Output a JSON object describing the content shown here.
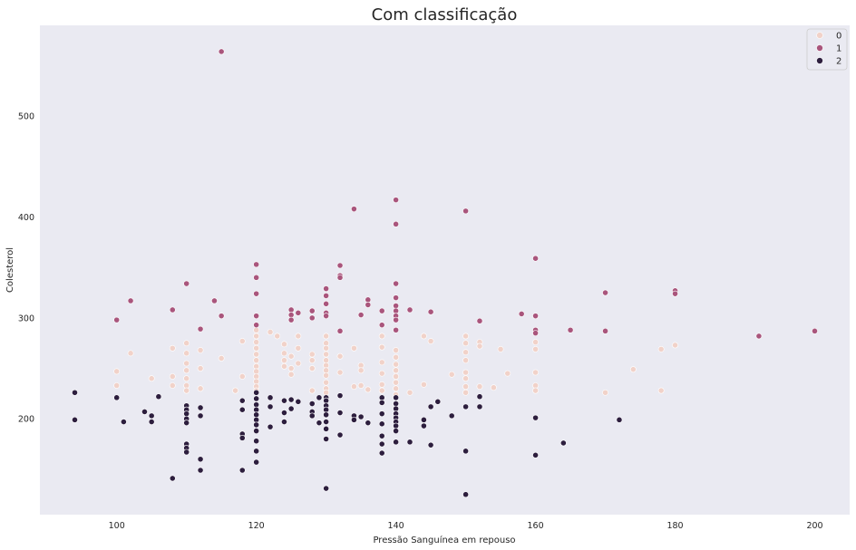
{
  "chart_data": {
    "type": "scatter",
    "title": "Com classificação",
    "xlabel": "Pressão Sanguínea em repouso",
    "ylabel": "Colesterol",
    "xlim": [
      89,
      205
    ],
    "ylim": [
      105,
      590
    ],
    "xticks": [
      100,
      120,
      140,
      160,
      180,
      200
    ],
    "yticks": [
      200,
      300,
      400,
      500
    ],
    "grid": false,
    "legend_position": "top-right",
    "series": [
      {
        "name": "0",
        "color": "#f1d2c9",
        "points": [
          [
            100,
            247
          ],
          [
            100,
            233
          ],
          [
            102,
            265
          ],
          [
            105,
            240
          ],
          [
            108,
            270
          ],
          [
            108,
            242
          ],
          [
            108,
            233
          ],
          [
            110,
            275
          ],
          [
            110,
            265
          ],
          [
            110,
            255
          ],
          [
            110,
            248
          ],
          [
            110,
            240
          ],
          [
            110,
            233
          ],
          [
            110,
            228
          ],
          [
            112,
            268
          ],
          [
            112,
            250
          ],
          [
            112,
            230
          ],
          [
            115,
            260
          ],
          [
            117,
            228
          ],
          [
            118,
            277
          ],
          [
            118,
            242
          ],
          [
            120,
            288
          ],
          [
            120,
            282
          ],
          [
            120,
            276
          ],
          [
            120,
            270
          ],
          [
            120,
            264
          ],
          [
            120,
            258
          ],
          [
            120,
            252
          ],
          [
            120,
            247
          ],
          [
            120,
            242
          ],
          [
            120,
            237
          ],
          [
            120,
            232
          ],
          [
            120,
            228
          ],
          [
            122,
            286
          ],
          [
            123,
            282
          ],
          [
            124,
            274
          ],
          [
            124,
            265
          ],
          [
            124,
            258
          ],
          [
            124,
            252
          ],
          [
            125,
            262
          ],
          [
            125,
            250
          ],
          [
            125,
            244
          ],
          [
            126,
            282
          ],
          [
            126,
            270
          ],
          [
            126,
            255
          ],
          [
            128,
            264
          ],
          [
            128,
            258
          ],
          [
            128,
            250
          ],
          [
            128,
            228
          ],
          [
            130,
            282
          ],
          [
            130,
            275
          ],
          [
            130,
            270
          ],
          [
            130,
            264
          ],
          [
            130,
            258
          ],
          [
            130,
            253
          ],
          [
            130,
            248
          ],
          [
            130,
            243
          ],
          [
            130,
            236
          ],
          [
            130,
            230
          ],
          [
            130,
            226
          ],
          [
            132,
            262
          ],
          [
            132,
            246
          ],
          [
            134,
            270
          ],
          [
            134,
            232
          ],
          [
            135,
            253
          ],
          [
            135,
            248
          ],
          [
            135,
            233
          ],
          [
            136,
            229
          ],
          [
            138,
            282
          ],
          [
            138,
            271
          ],
          [
            138,
            256
          ],
          [
            138,
            245
          ],
          [
            138,
            234
          ],
          [
            138,
            228
          ],
          [
            140,
            268
          ],
          [
            140,
            261
          ],
          [
            140,
            254
          ],
          [
            140,
            248
          ],
          [
            140,
            242
          ],
          [
            140,
            236
          ],
          [
            140,
            230
          ],
          [
            140,
            224
          ],
          [
            142,
            226
          ],
          [
            144,
            282
          ],
          [
            144,
            234
          ],
          [
            145,
            277
          ],
          [
            148,
            244
          ],
          [
            150,
            282
          ],
          [
            150,
            275
          ],
          [
            150,
            266
          ],
          [
            150,
            258
          ],
          [
            150,
            246
          ],
          [
            150,
            240
          ],
          [
            150,
            232
          ],
          [
            150,
            226
          ],
          [
            152,
            276
          ],
          [
            152,
            272
          ],
          [
            152,
            232
          ],
          [
            154,
            231
          ],
          [
            155,
            269
          ],
          [
            156,
            245
          ],
          [
            160,
            276
          ],
          [
            160,
            269
          ],
          [
            160,
            246
          ],
          [
            160,
            233
          ],
          [
            160,
            228
          ],
          [
            170,
            226
          ],
          [
            174,
            249
          ],
          [
            178,
            269
          ],
          [
            178,
            228
          ],
          [
            180,
            273
          ]
        ]
      },
      {
        "name": "1",
        "color": "#a9557c",
        "points": [
          [
            100,
            298
          ],
          [
            102,
            317
          ],
          [
            108,
            308
          ],
          [
            110,
            334
          ],
          [
            112,
            289
          ],
          [
            114,
            317
          ],
          [
            115,
            302
          ],
          [
            115,
            564
          ],
          [
            120,
            353
          ],
          [
            120,
            340
          ],
          [
            120,
            324
          ],
          [
            120,
            302
          ],
          [
            120,
            293
          ],
          [
            125,
            308
          ],
          [
            125,
            303
          ],
          [
            125,
            298
          ],
          [
            126,
            305
          ],
          [
            128,
            307
          ],
          [
            128,
            300
          ],
          [
            130,
            329
          ],
          [
            130,
            322
          ],
          [
            130,
            314
          ],
          [
            130,
            305
          ],
          [
            130,
            302
          ],
          [
            132,
            352
          ],
          [
            132,
            342
          ],
          [
            132,
            340
          ],
          [
            132,
            287
          ],
          [
            134,
            408
          ],
          [
            135,
            303
          ],
          [
            136,
            318
          ],
          [
            136,
            313
          ],
          [
            138,
            307
          ],
          [
            138,
            293
          ],
          [
            140,
            417
          ],
          [
            140,
            393
          ],
          [
            140,
            334
          ],
          [
            140,
            320
          ],
          [
            140,
            312
          ],
          [
            140,
            307
          ],
          [
            140,
            302
          ],
          [
            140,
            298
          ],
          [
            140,
            288
          ],
          [
            142,
            308
          ],
          [
            145,
            306
          ],
          [
            150,
            406
          ],
          [
            152,
            297
          ],
          [
            158,
            304
          ],
          [
            160,
            359
          ],
          [
            160,
            302
          ],
          [
            160,
            288
          ],
          [
            160,
            285
          ],
          [
            165,
            288
          ],
          [
            170,
            325
          ],
          [
            170,
            287
          ],
          [
            180,
            327
          ],
          [
            180,
            324
          ],
          [
            192,
            282
          ],
          [
            200,
            287
          ]
        ]
      },
      {
        "name": "2",
        "color": "#2d1e3e",
        "points": [
          [
            94,
            226
          ],
          [
            94,
            199
          ],
          [
            100,
            221
          ],
          [
            101,
            197
          ],
          [
            104,
            207
          ],
          [
            105,
            203
          ],
          [
            105,
            197
          ],
          [
            106,
            222
          ],
          [
            108,
            141
          ],
          [
            110,
            213
          ],
          [
            110,
            209
          ],
          [
            110,
            205
          ],
          [
            110,
            200
          ],
          [
            110,
            196
          ],
          [
            110,
            175
          ],
          [
            110,
            171
          ],
          [
            110,
            167
          ],
          [
            112,
            211
          ],
          [
            112,
            203
          ],
          [
            112,
            160
          ],
          [
            112,
            149
          ],
          [
            118,
            218
          ],
          [
            118,
            209
          ],
          [
            118,
            185
          ],
          [
            118,
            181
          ],
          [
            118,
            149
          ],
          [
            120,
            226
          ],
          [
            120,
            220
          ],
          [
            120,
            214
          ],
          [
            120,
            209
          ],
          [
            120,
            204
          ],
          [
            120,
            199
          ],
          [
            120,
            194
          ],
          [
            120,
            188
          ],
          [
            120,
            178
          ],
          [
            120,
            168
          ],
          [
            120,
            157
          ],
          [
            122,
            221
          ],
          [
            122,
            212
          ],
          [
            122,
            192
          ],
          [
            124,
            218
          ],
          [
            124,
            206
          ],
          [
            124,
            197
          ],
          [
            125,
            219
          ],
          [
            125,
            210
          ],
          [
            126,
            217
          ],
          [
            128,
            215
          ],
          [
            128,
            207
          ],
          [
            128,
            203
          ],
          [
            129,
            221
          ],
          [
            129,
            196
          ],
          [
            130,
            221
          ],
          [
            130,
            218
          ],
          [
            130,
            213
          ],
          [
            130,
            209
          ],
          [
            130,
            204
          ],
          [
            130,
            197
          ],
          [
            130,
            190
          ],
          [
            130,
            180
          ],
          [
            130,
            131
          ],
          [
            132,
            223
          ],
          [
            132,
            206
          ],
          [
            132,
            184
          ],
          [
            134,
            203
          ],
          [
            134,
            199
          ],
          [
            135,
            202
          ],
          [
            136,
            196
          ],
          [
            138,
            221
          ],
          [
            138,
            216
          ],
          [
            138,
            205
          ],
          [
            138,
            195
          ],
          [
            138,
            183
          ],
          [
            138,
            175
          ],
          [
            138,
            166
          ],
          [
            140,
            221
          ],
          [
            140,
            215
          ],
          [
            140,
            210
          ],
          [
            140,
            205
          ],
          [
            140,
            201
          ],
          [
            140,
            197
          ],
          [
            140,
            193
          ],
          [
            140,
            188
          ],
          [
            140,
            177
          ],
          [
            142,
            177
          ],
          [
            144,
            199
          ],
          [
            144,
            193
          ],
          [
            145,
            212
          ],
          [
            145,
            174
          ],
          [
            146,
            217
          ],
          [
            148,
            203
          ],
          [
            150,
            212
          ],
          [
            150,
            168
          ],
          [
            150,
            125
          ],
          [
            152,
            222
          ],
          [
            152,
            212
          ],
          [
            160,
            201
          ],
          [
            160,
            164
          ],
          [
            164,
            176
          ],
          [
            172,
            199
          ]
        ]
      }
    ]
  }
}
